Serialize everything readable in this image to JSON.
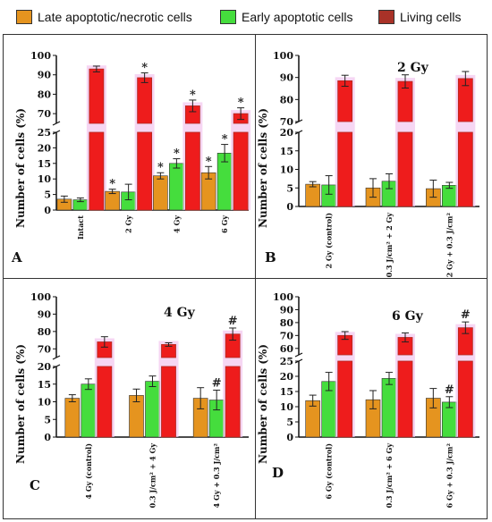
{
  "legend": [
    {
      "label": "Late apoptotic/necrotic cells",
      "color": "#e5941f"
    },
    {
      "label": "Early apoptotic cells",
      "color": "#45dd3d"
    },
    {
      "label": "Living cells",
      "color": "#a93228"
    }
  ],
  "colors": {
    "late": "#e5941f",
    "early": "#45dd3d",
    "living": "#ee1c1c",
    "living_dark": "#b02a22",
    "glow": "#f2c4ee"
  },
  "chart_data": [
    {
      "panel": "A",
      "type": "bar",
      "title": "",
      "ylabel": "Number of cells (%)",
      "categories": [
        "Intact",
        "2 Gy",
        "4 Gy",
        "6 Gy"
      ],
      "broken_axis": {
        "lower": [
          0,
          25
        ],
        "upper": [
          65,
          100
        ]
      },
      "lower_ticks": [
        0,
        5,
        10,
        15,
        20,
        25
      ],
      "upper_ticks": [
        70,
        80,
        90,
        100
      ],
      "series": [
        {
          "values": [
            3.5,
            6.0,
            11.0,
            12.0
          ],
          "errors": [
            1.0,
            0.7,
            1.0,
            2.0
          ],
          "marks": [
            "",
            "*",
            "*",
            "*"
          ]
        },
        {
          "values": [
            3.3,
            5.8,
            15.0,
            18.3
          ],
          "errors": [
            0.6,
            2.5,
            1.5,
            2.8
          ],
          "marks": [
            "",
            "",
            "*",
            "*"
          ]
        },
        {
          "values": [
            93.0,
            88.5,
            74.0,
            70.0
          ],
          "errors": [
            1.5,
            2.5,
            3.0,
            3.0
          ],
          "marks": [
            "",
            "*",
            "*",
            "*"
          ]
        }
      ]
    },
    {
      "panel": "B",
      "type": "bar",
      "title": "2 Gy",
      "ylabel": "Number of cells (%)",
      "categories": [
        "2 Gy (control)",
        "0.3 J/cm² + 2 Gy",
        "2 Gy + 0.3 J/cm²"
      ],
      "broken_axis": {
        "lower": [
          0,
          20
        ],
        "upper": [
          70,
          100
        ]
      },
      "lower_ticks": [
        0,
        5,
        10,
        15,
        20
      ],
      "upper_ticks": [
        70,
        80,
        90,
        100
      ],
      "series": [
        {
          "values": [
            6.0,
            5.0,
            4.8
          ],
          "errors": [
            0.7,
            2.5,
            2.3
          ],
          "marks": [
            "",
            "",
            ""
          ]
        },
        {
          "values": [
            5.8,
            6.8,
            5.7
          ],
          "errors": [
            2.5,
            2.0,
            0.8
          ],
          "marks": [
            "",
            "",
            ""
          ]
        },
        {
          "values": [
            88.5,
            88.2,
            89.5
          ],
          "errors": [
            2.5,
            3.0,
            3.2
          ],
          "marks": [
            "",
            "",
            ""
          ]
        }
      ]
    },
    {
      "panel": "C",
      "type": "bar",
      "title": "4 Gy",
      "ylabel": "Number of cells (%)",
      "categories": [
        "4 Gy (control)",
        "0.3 J/cm² + 4 Gy",
        "4 Gy + 0.3 J/cm²"
      ],
      "broken_axis": {
        "lower": [
          0,
          20
        ],
        "upper": [
          65,
          100
        ]
      },
      "lower_ticks": [
        0,
        5,
        10,
        15,
        20
      ],
      "upper_ticks": [
        70,
        80,
        90,
        100
      ],
      "series": [
        {
          "values": [
            11.0,
            11.8,
            11.0
          ],
          "errors": [
            1.0,
            1.8,
            3.0
          ],
          "marks": [
            "",
            "",
            ""
          ]
        },
        {
          "values": [
            15.0,
            15.8,
            10.5
          ],
          "errors": [
            1.5,
            1.5,
            2.8
          ],
          "marks": [
            "",
            "",
            "#"
          ]
        },
        {
          "values": [
            74.0,
            72.5,
            78.5
          ],
          "errors": [
            3.0,
            1.0,
            3.5
          ],
          "marks": [
            "",
            "",
            "#"
          ]
        }
      ]
    },
    {
      "panel": "D",
      "type": "bar",
      "title": "6 Gy",
      "ylabel": "Number of cells (%)",
      "categories": [
        "6 Gy (control)",
        "0.3 J/cm² + 6 Gy",
        "6 Gy + 0.3 J/cm²"
      ],
      "broken_axis": {
        "lower": [
          0,
          25
        ],
        "upper": [
          55,
          100
        ]
      },
      "lower_ticks": [
        0,
        5,
        10,
        15,
        20,
        25
      ],
      "upper_ticks": [
        60,
        70,
        80,
        90,
        100
      ],
      "series": [
        {
          "values": [
            12.0,
            12.3,
            12.8
          ],
          "errors": [
            1.8,
            3.0,
            3.2
          ],
          "marks": [
            "",
            "",
            ""
          ]
        },
        {
          "values": [
            18.3,
            19.3,
            11.5
          ],
          "errors": [
            3.0,
            2.0,
            1.8
          ],
          "marks": [
            "",
            "",
            "#"
          ]
        },
        {
          "values": [
            70.0,
            68.5,
            76.0
          ],
          "errors": [
            3.0,
            3.5,
            4.5
          ],
          "marks": [
            "",
            "",
            "#"
          ]
        }
      ]
    }
  ]
}
